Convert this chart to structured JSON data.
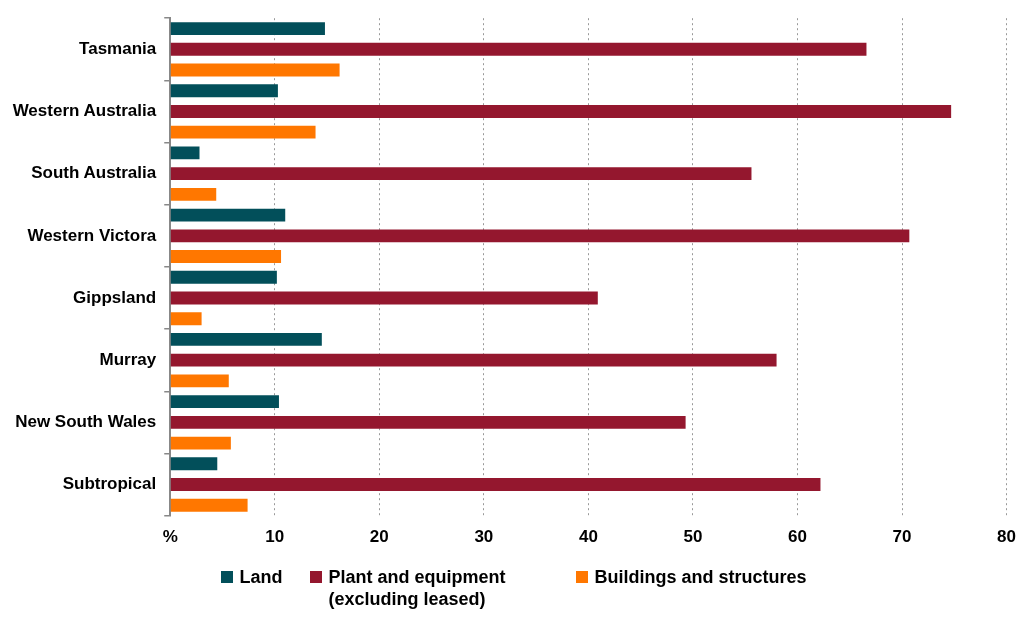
{
  "chart_data": {
    "type": "bar",
    "orientation": "horizontal",
    "categories": [
      "Tasmania",
      "Western Australia",
      "South Australia",
      "Western Victora",
      "Gippsland",
      "Murray",
      "New South Wales",
      "Subtropical"
    ],
    "series": [
      {
        "name": "Land",
        "color": "#024f5a",
        "values": [
          14.8,
          10.3,
          2.8,
          11.0,
          10.2,
          14.5,
          10.4,
          4.5
        ]
      },
      {
        "name": "Plant and equipment (excluding leased)",
        "color": "#94172e",
        "values": [
          66.6,
          74.7,
          55.6,
          70.7,
          40.9,
          58.0,
          49.3,
          62.2
        ]
      },
      {
        "name": "Buildings and structures",
        "color": "#ff7700",
        "values": [
          16.2,
          13.9,
          4.4,
          10.6,
          3.0,
          5.6,
          5.8,
          7.4
        ]
      }
    ],
    "xlim": [
      0,
      80
    ],
    "xticks": [
      {
        "value": 0,
        "label": "%"
      },
      10,
      20,
      30,
      40,
      50,
      60,
      70,
      80
    ],
    "grid": "x",
    "legend": "bottom"
  }
}
